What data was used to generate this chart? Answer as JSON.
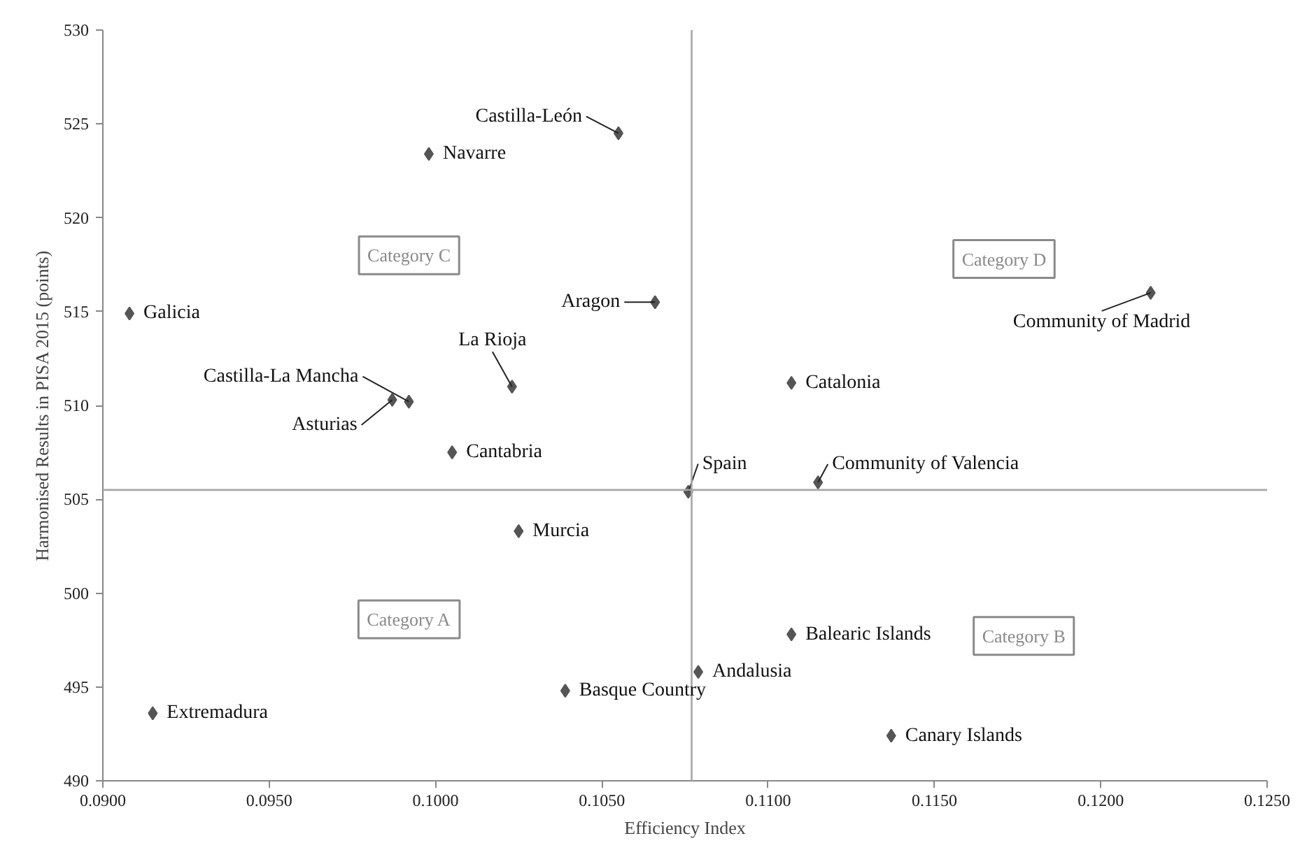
{
  "chart_data": {
    "type": "scatter",
    "xlabel": "Efficiency Index",
    "ylabel": "Harmonised Results in PISA 2015 (points)",
    "xlim": [
      0.09,
      0.125
    ],
    "ylim": [
      490,
      530
    ],
    "xticks": [
      {
        "value": 0.09,
        "label": "0.0900"
      },
      {
        "value": 0.095,
        "label": "0.0950"
      },
      {
        "value": 0.1,
        "label": "0.1000"
      },
      {
        "value": 0.105,
        "label": "0.1050"
      },
      {
        "value": 0.11,
        "label": "0.1100"
      },
      {
        "value": 0.115,
        "label": "0.1150"
      },
      {
        "value": 0.12,
        "label": "0.1200"
      },
      {
        "value": 0.125,
        "label": "0.1250"
      }
    ],
    "yticks": [
      490,
      495,
      500,
      505,
      510,
      515,
      520,
      525,
      530
    ],
    "marker": "diamond",
    "grid": false,
    "legend": false,
    "ref_lines": [
      {
        "axis": "x",
        "value": 0.1077,
        "color": "#a6a6a6"
      },
      {
        "axis": "y",
        "value": 505.5,
        "color": "#a6a6a6"
      }
    ],
    "annotations": [
      "Category C",
      "Category D",
      "Category A",
      "Category B"
    ],
    "series": [
      {
        "name": "Castilla-León",
        "color": "#555555",
        "x": [
          0.1055
        ],
        "values": [
          524.5
        ]
      },
      {
        "name": "Navarre",
        "color": "#555555",
        "x": [
          0.0998
        ],
        "values": [
          523.4
        ]
      },
      {
        "name": "Galicia",
        "color": "#555555",
        "x": [
          0.0908
        ],
        "values": [
          514.9
        ]
      },
      {
        "name": "Aragon",
        "color": "#555555",
        "x": [
          0.1066
        ],
        "values": [
          515.5
        ]
      },
      {
        "name": "La Rioja",
        "color": "#555555",
        "x": [
          0.1023
        ],
        "values": [
          511.0
        ]
      },
      {
        "name": "Castilla-La Mancha",
        "color": "#555555",
        "x": [
          0.0992
        ],
        "values": [
          510.2
        ]
      },
      {
        "name": "Asturias",
        "color": "#555555",
        "x": [
          0.0987
        ],
        "values": [
          510.3
        ]
      },
      {
        "name": "Cantabria",
        "color": "#555555",
        "x": [
          0.1005
        ],
        "values": [
          507.5
        ]
      },
      {
        "name": "Spain",
        "color": "#555555",
        "x": [
          0.1076
        ],
        "values": [
          505.4
        ]
      },
      {
        "name": "Community of Madrid",
        "color": "#555555",
        "x": [
          0.1215
        ],
        "values": [
          516.0
        ]
      },
      {
        "name": "Catalonia",
        "color": "#555555",
        "x": [
          0.1107
        ],
        "values": [
          511.2
        ]
      },
      {
        "name": "Community of Valencia",
        "color": "#555555",
        "x": [
          0.1115
        ],
        "values": [
          505.9
        ]
      },
      {
        "name": "Murcia",
        "color": "#555555",
        "x": [
          0.1025
        ],
        "values": [
          503.3
        ]
      },
      {
        "name": "Extremadura",
        "color": "#555555",
        "x": [
          0.0915
        ],
        "values": [
          493.6
        ]
      },
      {
        "name": "Basque Country",
        "color": "#555555",
        "x": [
          0.1039
        ],
        "values": [
          494.8
        ]
      },
      {
        "name": "Andalusia",
        "color": "#555555",
        "x": [
          0.1079
        ],
        "values": [
          495.8
        ]
      },
      {
        "name": "Balearic Islands",
        "color": "#555555",
        "x": [
          0.1107
        ],
        "values": [
          497.8
        ]
      },
      {
        "name": "Canary Islands",
        "color": "#555555",
        "x": [
          0.1137
        ],
        "values": [
          492.4
        ]
      }
    ]
  }
}
